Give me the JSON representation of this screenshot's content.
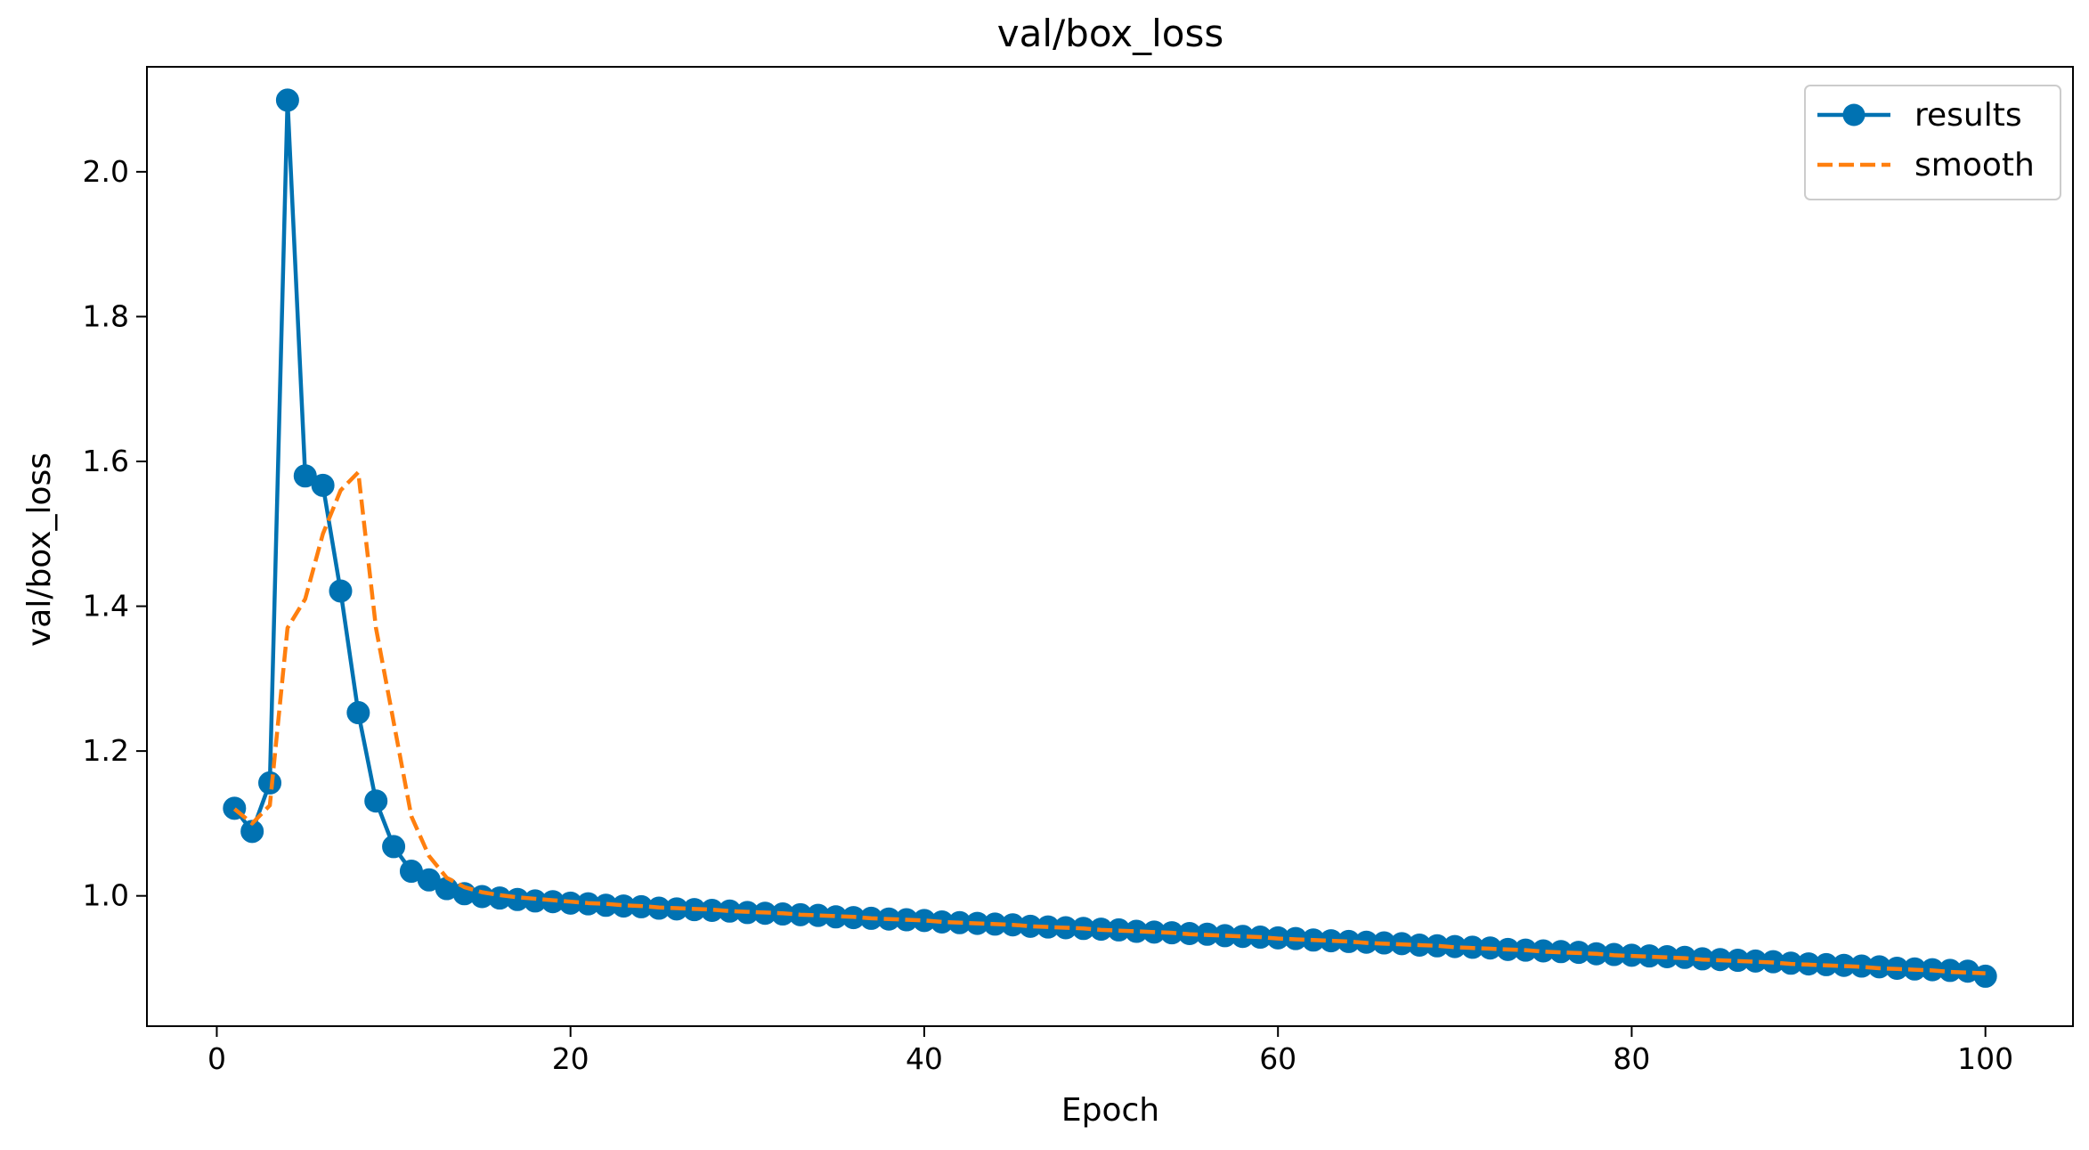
{
  "chart_data": {
    "type": "line",
    "title": "val/box_loss",
    "xlabel": "Epoch",
    "ylabel": "val/box_loss",
    "xlim": [
      -3.95,
      104.95
    ],
    "ylim": [
      0.82,
      2.145
    ],
    "xticks": [
      0,
      20,
      40,
      60,
      80,
      100
    ],
    "xtick_labels": [
      "0",
      "20",
      "40",
      "60",
      "80",
      "100"
    ],
    "yticks": [
      1.0,
      1.2,
      1.4,
      1.6,
      1.8,
      2.0
    ],
    "ytick_labels": [
      "1.0",
      "1.2",
      "1.4",
      "1.6",
      "1.8",
      "2.0"
    ],
    "grid": false,
    "legend_position": "top-right",
    "series": [
      {
        "name": "results",
        "style": "solid-with-markers",
        "color": "#0072B2",
        "x": [
          1,
          2,
          3,
          4,
          5,
          6,
          7,
          8,
          9,
          10,
          11,
          12,
          13,
          14,
          15,
          16,
          17,
          18,
          19,
          20,
          21,
          22,
          23,
          24,
          25,
          26,
          27,
          28,
          29,
          30,
          31,
          32,
          33,
          34,
          35,
          36,
          37,
          38,
          39,
          40,
          41,
          42,
          43,
          44,
          45,
          46,
          47,
          48,
          49,
          50,
          51,
          52,
          53,
          54,
          55,
          56,
          57,
          58,
          59,
          60,
          61,
          62,
          63,
          64,
          65,
          66,
          67,
          68,
          69,
          70,
          71,
          72,
          73,
          74,
          75,
          76,
          77,
          78,
          79,
          80,
          81,
          82,
          83,
          84,
          85,
          86,
          87,
          88,
          89,
          90,
          91,
          92,
          93,
          94,
          95,
          96,
          97,
          98,
          99,
          100
        ],
        "values": [
          1.121,
          1.089,
          1.156,
          2.099,
          1.58,
          1.567,
          1.421,
          1.253,
          1.131,
          1.068,
          1.034,
          1.022,
          1.01,
          1.003,
          0.999,
          0.997,
          0.995,
          0.993,
          0.992,
          0.99,
          0.989,
          0.987,
          0.986,
          0.985,
          0.983,
          0.982,
          0.981,
          0.98,
          0.979,
          0.977,
          0.976,
          0.975,
          0.974,
          0.973,
          0.971,
          0.97,
          0.969,
          0.968,
          0.967,
          0.966,
          0.964,
          0.963,
          0.962,
          0.961,
          0.96,
          0.958,
          0.957,
          0.956,
          0.955,
          0.954,
          0.953,
          0.951,
          0.95,
          0.949,
          0.948,
          0.947,
          0.945,
          0.944,
          0.943,
          0.942,
          0.941,
          0.939,
          0.938,
          0.937,
          0.936,
          0.935,
          0.934,
          0.932,
          0.931,
          0.93,
          0.929,
          0.928,
          0.926,
          0.925,
          0.924,
          0.923,
          0.922,
          0.92,
          0.919,
          0.918,
          0.917,
          0.916,
          0.915,
          0.913,
          0.912,
          0.911,
          0.91,
          0.909,
          0.907,
          0.906,
          0.905,
          0.904,
          0.903,
          0.902,
          0.9,
          0.899,
          0.898,
          0.897,
          0.896,
          0.889
        ]
      },
      {
        "name": "smooth",
        "style": "dashed",
        "color": "#FF7F0E",
        "x": [
          1,
          2,
          3,
          4,
          5,
          6,
          7,
          8,
          9,
          10,
          11,
          12,
          13,
          14,
          15,
          16,
          17,
          18,
          19,
          20,
          21,
          22,
          23,
          24,
          25,
          26,
          27,
          28,
          29,
          30,
          31,
          32,
          33,
          34,
          35,
          36,
          37,
          38,
          39,
          40,
          41,
          42,
          43,
          44,
          45,
          46,
          47,
          48,
          49,
          50,
          51,
          52,
          53,
          54,
          55,
          56,
          57,
          58,
          59,
          60,
          61,
          62,
          63,
          64,
          65,
          66,
          67,
          68,
          69,
          70,
          71,
          72,
          73,
          74,
          75,
          76,
          77,
          78,
          79,
          80,
          81,
          82,
          83,
          84,
          85,
          86,
          87,
          88,
          89,
          90,
          91,
          92,
          93,
          94,
          95,
          96,
          97,
          98,
          99,
          100
        ],
        "values": [
          1.12,
          1.1,
          1.125,
          1.37,
          1.41,
          1.5,
          1.56,
          1.585,
          1.37,
          1.24,
          1.11,
          1.055,
          1.025,
          1.012,
          1.005,
          1.001,
          0.998,
          0.996,
          0.994,
          0.992,
          0.99,
          0.989,
          0.987,
          0.986,
          0.984,
          0.983,
          0.982,
          0.981,
          0.979,
          0.978,
          0.977,
          0.976,
          0.974,
          0.973,
          0.972,
          0.971,
          0.969,
          0.968,
          0.967,
          0.966,
          0.964,
          0.963,
          0.962,
          0.961,
          0.96,
          0.958,
          0.957,
          0.956,
          0.955,
          0.953,
          0.952,
          0.951,
          0.95,
          0.949,
          0.947,
          0.946,
          0.945,
          0.944,
          0.943,
          0.941,
          0.94,
          0.939,
          0.938,
          0.937,
          0.935,
          0.934,
          0.933,
          0.932,
          0.931,
          0.929,
          0.928,
          0.927,
          0.926,
          0.925,
          0.923,
          0.922,
          0.921,
          0.92,
          0.918,
          0.917,
          0.916,
          0.915,
          0.914,
          0.912,
          0.911,
          0.91,
          0.909,
          0.908,
          0.906,
          0.905,
          0.904,
          0.903,
          0.902,
          0.9,
          0.899,
          0.898,
          0.897,
          0.895,
          0.894,
          0.893
        ]
      }
    ]
  }
}
